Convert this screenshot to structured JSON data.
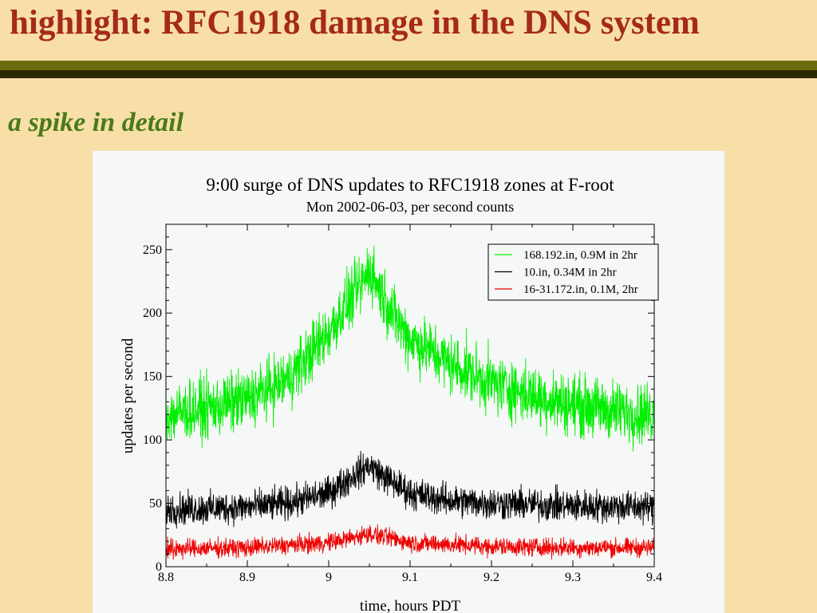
{
  "slide": {
    "title": "highlight: RFC1918 damage in the DNS system",
    "subtitle": "a spike in detail",
    "colors": {
      "title": "#a52a1a",
      "subtitle": "#4a7a1a",
      "background": "#f8dfa8",
      "rule": "#6b6b10"
    }
  },
  "chart_data": {
    "type": "line",
    "title": "9:00 surge of DNS updates to RFC1918 zones at F-root",
    "subtitle": "Mon 2002-06-03, per second counts",
    "xlabel": "time, hours PDT",
    "ylabel": "updates per second",
    "xlim": [
      8.8,
      9.4
    ],
    "ylim": [
      0,
      270
    ],
    "xticks": [
      8.8,
      8.9,
      9,
      9.1,
      9.2,
      9.3,
      9.4
    ],
    "xtick_labels": [
      "8.8",
      "8.9",
      "9",
      "9.1",
      "9.2",
      "9.3",
      "9.4"
    ],
    "yticks": [
      0,
      50,
      100,
      150,
      200,
      250
    ],
    "ytick_labels": [
      "0",
      "50",
      "100",
      "150",
      "200",
      "250"
    ],
    "grid": false,
    "legend_position": "top-right",
    "series": [
      {
        "name": "168.192.in, 0.9M in 2hr",
        "color": "#00ee00",
        "x": [
          8.8,
          8.85,
          8.9,
          8.95,
          9.0,
          9.02,
          9.04,
          9.05,
          9.06,
          9.08,
          9.1,
          9.15,
          9.2,
          9.25,
          9.3,
          9.35,
          9.4
        ],
        "y": [
          120,
          125,
          132,
          148,
          185,
          205,
          222,
          235,
          222,
          198,
          180,
          160,
          145,
          135,
          128,
          123,
          120
        ],
        "noise": 13
      },
      {
        "name": "10.in, 0.34M in 2hr",
        "color": "#000000",
        "x": [
          8.8,
          8.9,
          8.95,
          9.0,
          9.03,
          9.05,
          9.07,
          9.1,
          9.15,
          9.2,
          9.3,
          9.4
        ],
        "y": [
          45,
          47,
          50,
          58,
          72,
          80,
          70,
          58,
          52,
          50,
          48,
          47
        ],
        "noise": 7
      },
      {
        "name": "16-31.172.in, 0.1M, 2hr",
        "color": "#ee0000",
        "x": [
          8.8,
          8.9,
          9.0,
          9.03,
          9.05,
          9.08,
          9.1,
          9.2,
          9.3,
          9.4
        ],
        "y": [
          14,
          15,
          19,
          23,
          26,
          22,
          19,
          16,
          15,
          15
        ],
        "noise": 4
      }
    ]
  }
}
